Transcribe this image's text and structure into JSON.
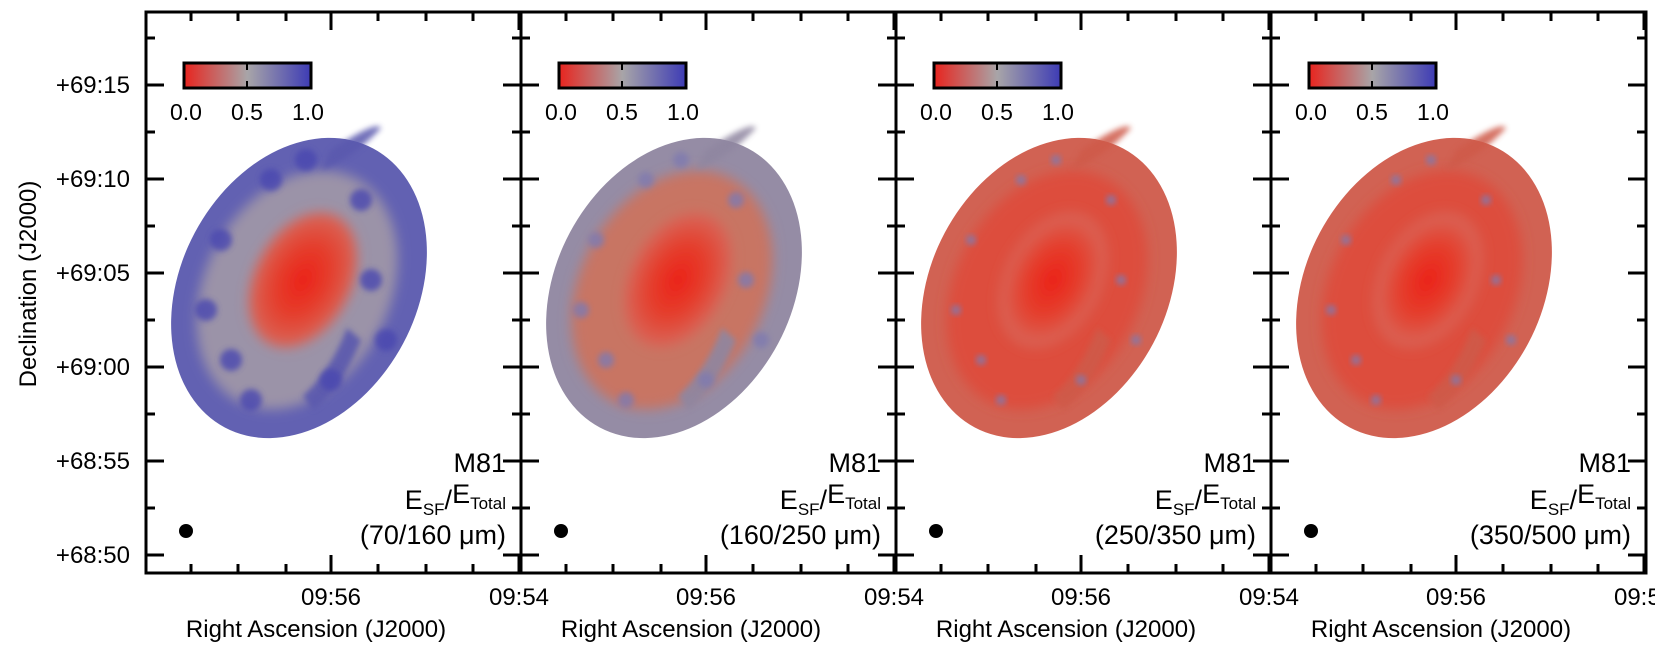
{
  "figure": {
    "ylabel": "Declination (J2000)",
    "xlabel": "Right Ascension (J2000)",
    "yticks": [
      "+69:15",
      "+69:10",
      "+69:05",
      "+69:00",
      "+68:55",
      "+68:50"
    ],
    "xticks": [
      "09:56",
      "09:54"
    ],
    "colorbar": {
      "labels": [
        "0.0",
        "0.5",
        "1.0"
      ],
      "colors": [
        "#e8241e",
        "#a8a5a8",
        "#3d3bb5"
      ]
    },
    "panels": [
      {
        "object": "M81",
        "ratio_main": "E",
        "sf_sub": "SF",
        "slash": "/",
        "total_main": "E",
        "total_sub": "Total",
        "band": "(70/160 μm)",
        "blue_fraction": 0.55
      },
      {
        "object": "M81",
        "ratio_main": "E",
        "sf_sub": "SF",
        "slash": "/",
        "total_main": "E",
        "total_sub": "Total",
        "band": "(160/250 μm)",
        "blue_fraction": 0.25
      },
      {
        "object": "M81",
        "ratio_main": "E",
        "sf_sub": "SF",
        "slash": "/",
        "total_main": "E",
        "total_sub": "Total",
        "band": "(250/350 μm)",
        "blue_fraction": 0.1
      },
      {
        "object": "M81",
        "ratio_main": "E",
        "sf_sub": "SF",
        "slash": "/",
        "total_main": "E",
        "total_sub": "Total",
        "band": "(350/500 μm)",
        "blue_fraction": 0.08
      }
    ]
  }
}
